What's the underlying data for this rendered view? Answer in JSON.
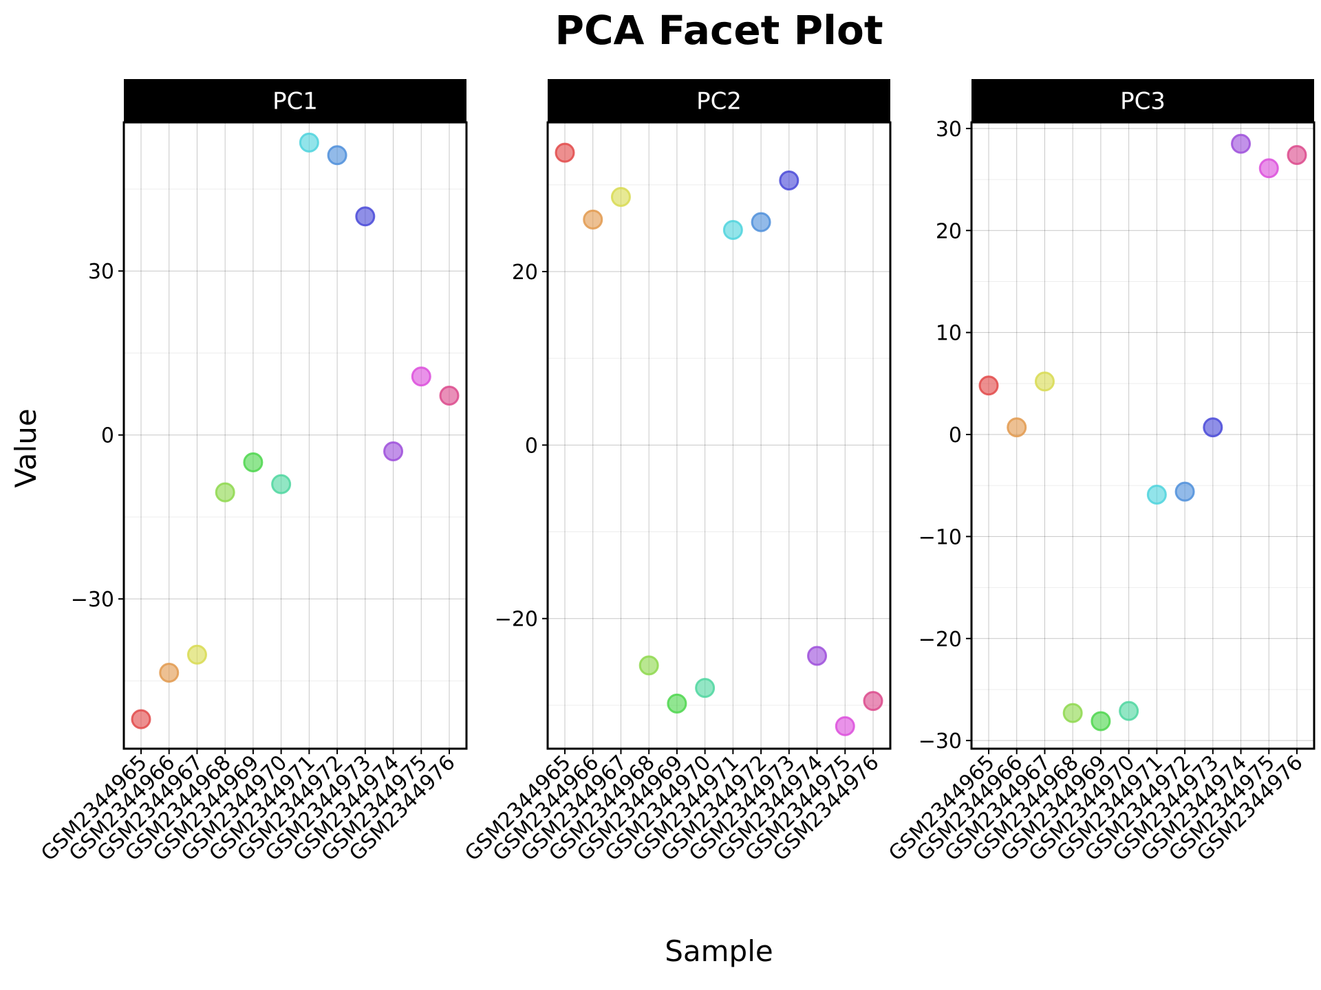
{
  "chart_data": {
    "type": "scatter",
    "title": "PCA Facet Plot",
    "xlabel": "Sample",
    "ylabel": "Value",
    "categories": [
      "GSM2344965",
      "GSM2344966",
      "GSM2344967",
      "GSM2344968",
      "GSM2344969",
      "GSM2344970",
      "GSM2344971",
      "GSM2344972",
      "GSM2344973",
      "GSM2344974",
      "GSM2344975",
      "GSM2344976"
    ],
    "colors": [
      "#e24a4a",
      "#e29a4f",
      "#d8db52",
      "#8ed84e",
      "#4dd64e",
      "#4fd6a0",
      "#4fd3dd",
      "#4f8fdb",
      "#4a4ad8",
      "#9d4fdb",
      "#dc4fdc",
      "#dc4a8c"
    ],
    "grid": true,
    "legend": "none",
    "facets": [
      {
        "name": "PC1",
        "ylim": [
          -57.4,
          57.2
        ],
        "yticks": [
          -30,
          0,
          30
        ],
        "ytick_labels": [
          "−30",
          "0",
          "30"
        ],
        "values": [
          -52.0,
          -43.5,
          -40.2,
          -10.5,
          -5.0,
          -9.0,
          53.5,
          51.2,
          40.0,
          -3.0,
          10.7,
          7.2
        ]
      },
      {
        "name": "PC2",
        "ylim": [
          -35.0,
          37.2
        ],
        "yticks": [
          -20,
          0,
          20
        ],
        "ytick_labels": [
          "−20",
          "0",
          "20"
        ],
        "values": [
          33.7,
          26.0,
          28.6,
          -25.4,
          -29.8,
          -28.0,
          24.8,
          25.7,
          30.5,
          -24.3,
          -32.4,
          -29.5
        ]
      },
      {
        "name": "PC3",
        "ylim": [
          -30.8,
          30.6
        ],
        "yticks": [
          -30,
          -20,
          -10,
          0,
          10,
          20,
          30
        ],
        "ytick_labels": [
          "−30",
          "−20",
          "−10",
          "0",
          "10",
          "20",
          "30"
        ],
        "values": [
          4.8,
          0.7,
          5.2,
          -27.3,
          -28.1,
          -27.1,
          -5.9,
          -5.6,
          0.7,
          28.5,
          26.1,
          27.4
        ]
      }
    ]
  }
}
